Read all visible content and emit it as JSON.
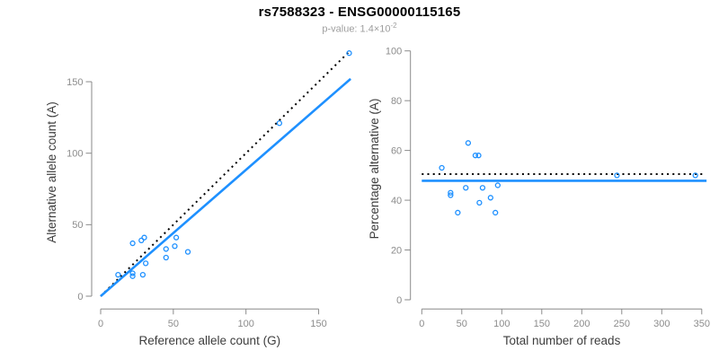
{
  "header": {
    "title": "rs7588323 - ENSG00000115165",
    "subtitle_prefix": "p-value: 1.4×10",
    "subtitle_exponent": "-2"
  },
  "colors": {
    "point_blue": "#1E90FF",
    "fit_blue": "#1E90FF",
    "identity_black": "#000000",
    "axis_gray": "#8a8a8a",
    "tick_text_gray": "#8c8c8c",
    "axis_title_gray": "#3d3d3d"
  },
  "chart_data": [
    {
      "type": "scatter",
      "title": "",
      "xlabel": "Reference allele count (G)",
      "ylabel": "Alternative allele count (A)",
      "xticks": [
        0,
        50,
        100,
        150
      ],
      "yticks": [
        0,
        50,
        100,
        150
      ],
      "xlim": [
        0,
        175
      ],
      "ylim": [
        0,
        175
      ],
      "grid": false,
      "points": [
        [
          12,
          15
        ],
        [
          22,
          14
        ],
        [
          22,
          16
        ],
        [
          29,
          15
        ],
        [
          31,
          23
        ],
        [
          22,
          37
        ],
        [
          28,
          39
        ],
        [
          30,
          41
        ],
        [
          45,
          27
        ],
        [
          45,
          33
        ],
        [
          51,
          35
        ],
        [
          52,
          41
        ],
        [
          60,
          31
        ],
        [
          123,
          121
        ],
        [
          171,
          170
        ]
      ],
      "lines": [
        {
          "name": "identity-line",
          "style": "dotted",
          "color_key": "identity_black",
          "from": [
            0,
            0
          ],
          "to": [
            172,
            172
          ]
        },
        {
          "name": "fit-line",
          "style": "solid",
          "color_key": "fit_blue",
          "from": [
            0,
            0
          ],
          "to": [
            172,
            152
          ]
        }
      ]
    },
    {
      "type": "scatter",
      "title": "",
      "xlabel": "Total number of reads",
      "ylabel": "Percentage alternative (A)",
      "xticks": [
        0,
        50,
        100,
        150,
        200,
        250,
        300,
        350
      ],
      "yticks": [
        0,
        20,
        40,
        60,
        80,
        100
      ],
      "xlim": [
        0,
        356
      ],
      "ylim": [
        0,
        100
      ],
      "grid": false,
      "points": [
        [
          25,
          53
        ],
        [
          36,
          42
        ],
        [
          36,
          43
        ],
        [
          45,
          35
        ],
        [
          55,
          45
        ],
        [
          58,
          63
        ],
        [
          67,
          58
        ],
        [
          71,
          58
        ],
        [
          72,
          39
        ],
        [
          76,
          45
        ],
        [
          86,
          41
        ],
        [
          92,
          35
        ],
        [
          95,
          46
        ],
        [
          244,
          50
        ],
        [
          342,
          50
        ]
      ],
      "lines": [
        {
          "name": "identity-line",
          "style": "dotted",
          "color_key": "identity_black",
          "from": [
            0,
            50.5
          ],
          "to": [
            352,
            50.5
          ]
        },
        {
          "name": "fit-line",
          "style": "solid",
          "color_key": "fit_blue",
          "from": [
            0,
            47.8
          ],
          "to": [
            356,
            47.8
          ]
        }
      ]
    }
  ]
}
